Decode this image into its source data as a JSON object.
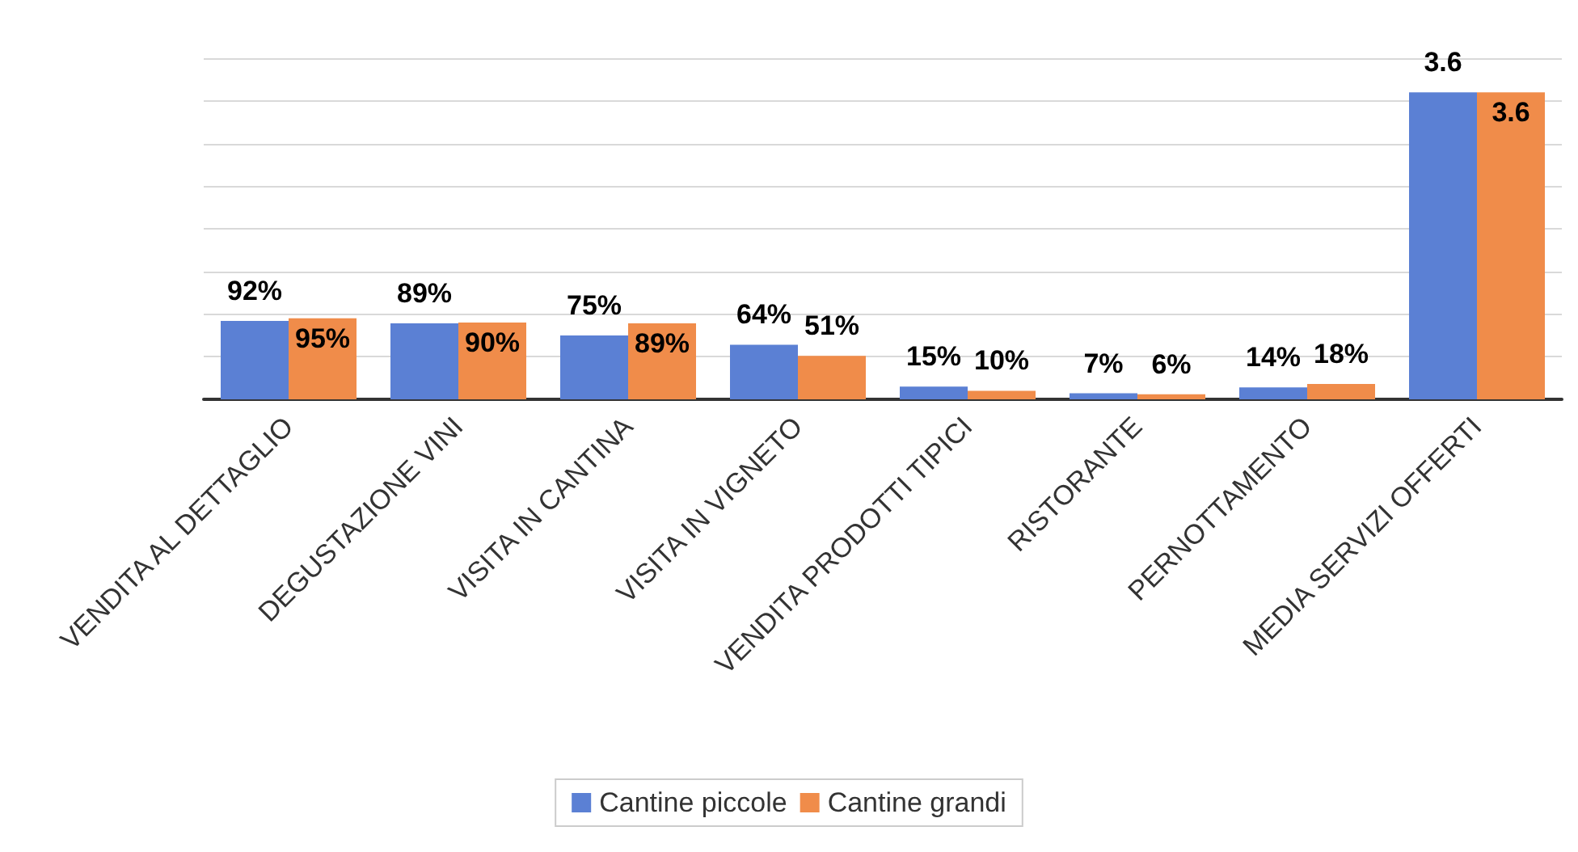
{
  "chart_data": {
    "type": "bar",
    "categories": [
      "VENDITA AL DETTAGLIO",
      "DEGUSTAZIONE VINI",
      "VISITA IN CANTINA",
      "VISITA IN VIGNETO",
      "VENDITA PRODOTTI TIPICI",
      "RISTORANTE",
      "PERNOTTAMENTO",
      "MEDIA SERVIZI OFFERTI"
    ],
    "series": [
      {
        "name": "Cantine piccole",
        "color": "#5b80d4",
        "values": [
          0.92,
          0.89,
          0.75,
          0.64,
          0.15,
          0.07,
          0.14,
          3.6
        ],
        "value_labels": [
          "92%",
          "89%",
          "75%",
          "64%",
          "15%",
          "7%",
          "14%",
          "3.6"
        ]
      },
      {
        "name": "Cantine grandi",
        "color": "#f08c4a",
        "values": [
          0.95,
          0.9,
          0.89,
          0.51,
          0.1,
          0.06,
          0.18,
          3.6
        ],
        "value_labels": [
          "95%",
          "90%",
          "89%",
          "51%",
          "10%",
          "6%",
          "18%",
          "3.6"
        ]
      }
    ],
    "ylim": [
      0,
      4
    ],
    "yticks": [
      {
        "value": 0,
        "label": null
      },
      {
        "value": 0.5,
        "label": null
      },
      {
        "value": 1,
        "label": null
      },
      {
        "value": 1.5,
        "label": null
      },
      {
        "value": 2,
        "label": null
      },
      {
        "value": 2.5,
        "label": null
      },
      {
        "value": 3,
        "label": null
      },
      {
        "value": 3.5,
        "label": null
      },
      {
        "value": 4,
        "label": null
      }
    ],
    "tick_labels": "x",
    "grid": "y",
    "legend": "bottom"
  }
}
